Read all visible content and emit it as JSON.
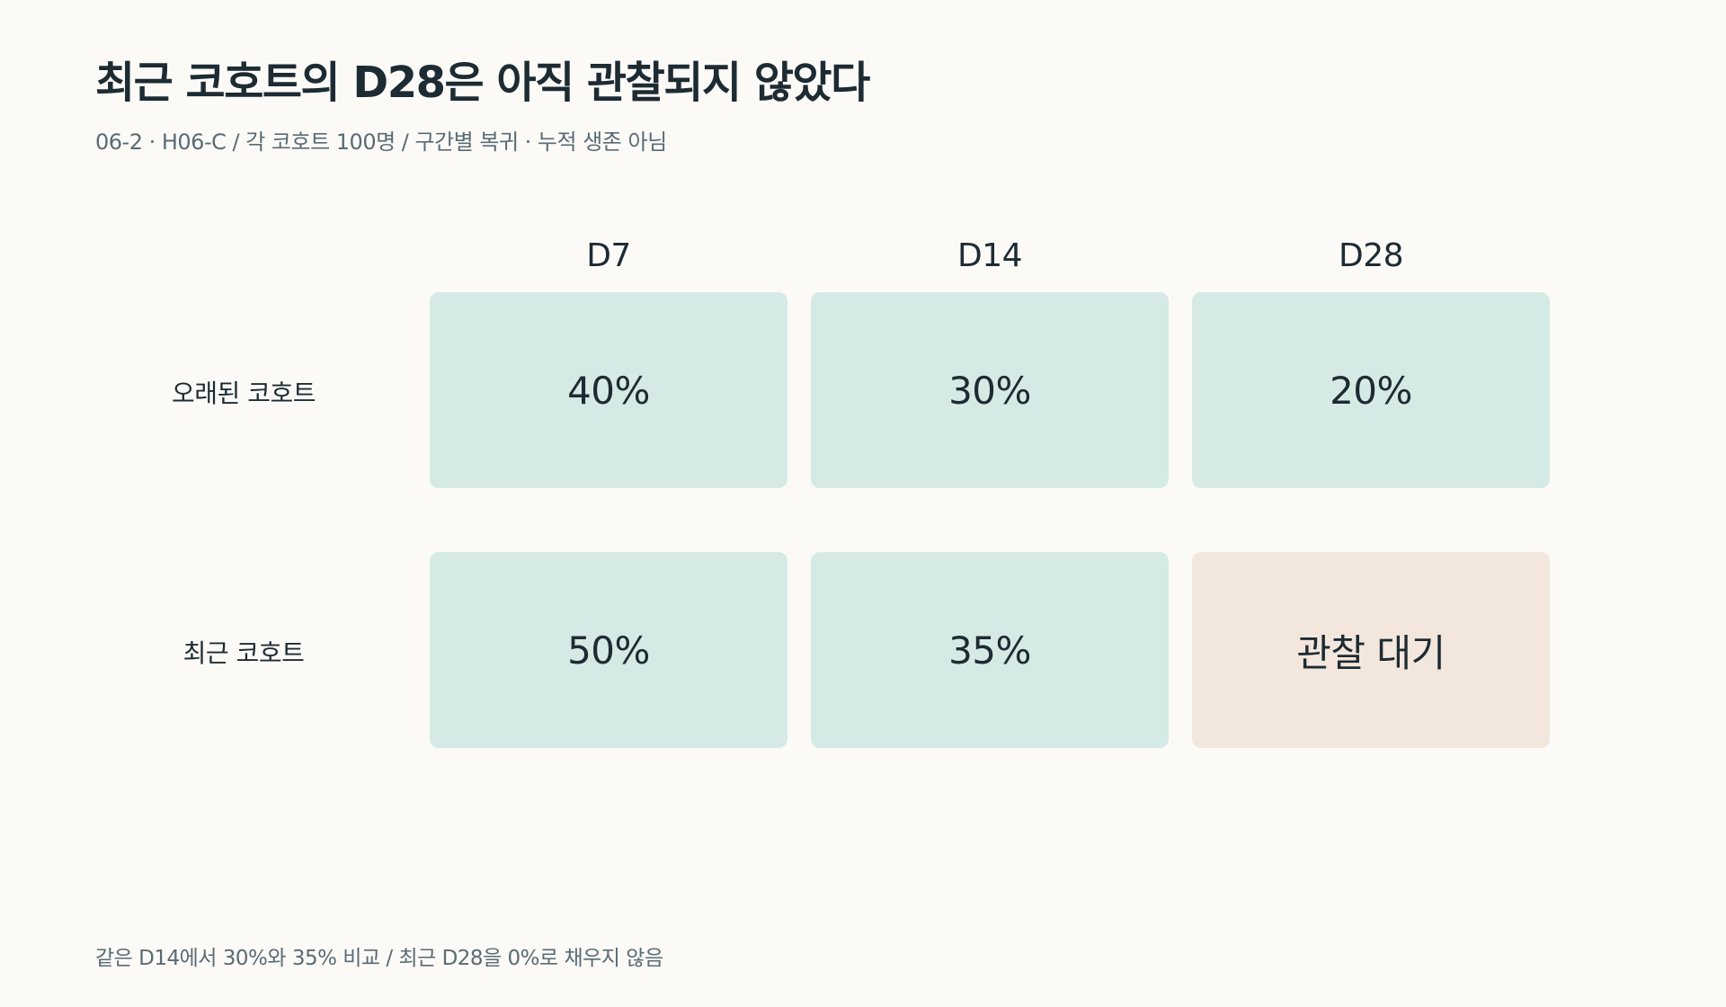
{
  "title": "최근 코호트의 D28은 아직 관찰되지 않았다",
  "subtitle": "06-2 · H06-C / 각 코호트 100명 / 구간별 복귀 · 누적 생존 아님",
  "footnote": "같은 D14에서 30%와 35% 비교 / 최근 D28을 0%로 채우지 않음",
  "colors": {
    "observed_cell": "#d6eae5",
    "pending_cell": "#f3e6dc",
    "background": "#fbfaf7",
    "text": "#1d2b33",
    "muted_text": "#5a6b74"
  },
  "chart_data": {
    "type": "table",
    "columns": [
      "D7",
      "D14",
      "D28"
    ],
    "rows": [
      {
        "name": "오래된 코호트",
        "values": [
          40,
          30,
          20
        ],
        "labels": [
          "40%",
          "30%",
          "20%"
        ]
      },
      {
        "name": "최근 코호트",
        "values": [
          50,
          35,
          null
        ],
        "labels": [
          "50%",
          "35%",
          "관찰 대기"
        ]
      }
    ]
  }
}
